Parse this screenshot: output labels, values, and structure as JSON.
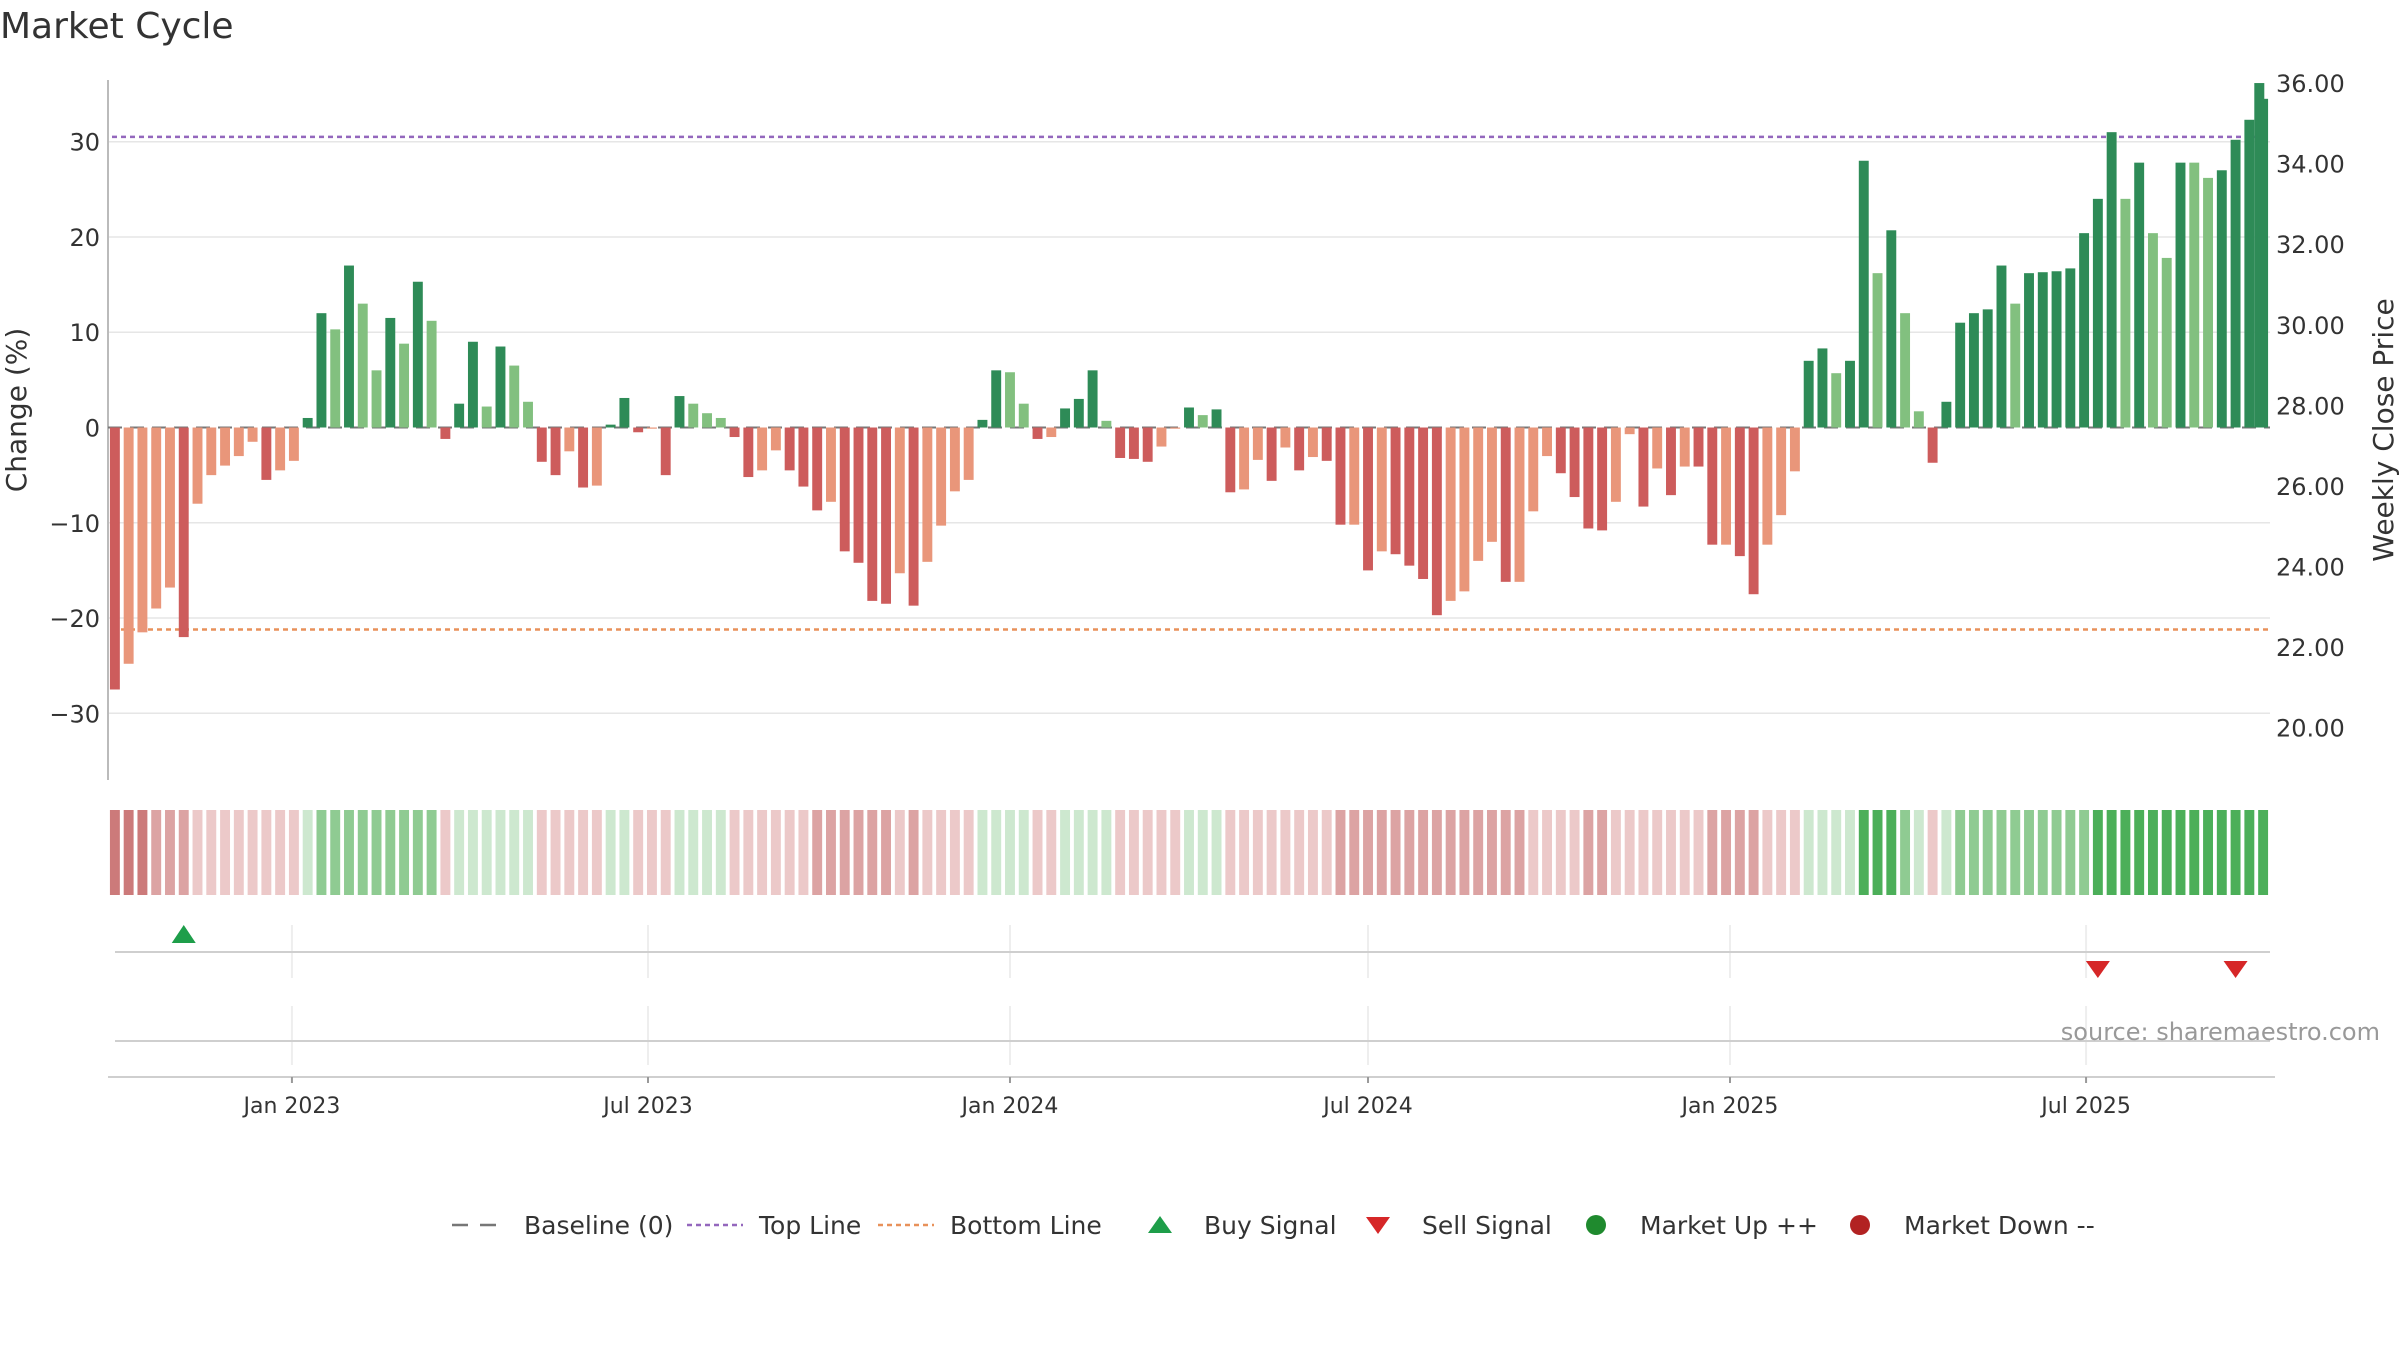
{
  "title": "Market Cycle",
  "source": "source: sharemaestro.com",
  "colors": {
    "strong_up": "#2e8b57",
    "weak_up": "#82c07f",
    "strong_down": "#cd5c5c",
    "weak_down": "#e9967a",
    "baseline": "#777777",
    "top_line": "#9467bd",
    "bottom_line": "#e8915a",
    "buy": "#1e9e4a",
    "sell": "#d62728",
    "market_up": "#1f8a2e",
    "market_down": "#b22222",
    "grid": "#e6e6e6"
  },
  "chart_data": {
    "type": "bar",
    "x_start": "2022-10-03",
    "x_interval_days": 7,
    "y_left_label": "Change (%)",
    "y_right_label": "Weekly Close Price",
    "y_left_ticks": [
      "30",
      "20",
      "10",
      "0",
      "−10",
      "−20",
      "−30"
    ],
    "y_right_ticks": [
      "36.00",
      "34.00",
      "32.00",
      "30.00",
      "28.00",
      "26.00",
      "24.00",
      "22.00",
      "20.00"
    ],
    "x_ticks": [
      {
        "date": "2023-01-01",
        "label": "Jan 2023"
      },
      {
        "date": "2023-07-01",
        "label": "Jul 2023"
      },
      {
        "date": "2024-01-01",
        "label": "Jan 2024"
      },
      {
        "date": "2024-07-01",
        "label": "Jul 2024"
      },
      {
        "date": "2025-01-01",
        "label": "Jan 2025"
      },
      {
        "date": "2025-07-01",
        "label": "Jul 2025"
      }
    ],
    "ylim": [
      -37,
      37
    ],
    "y_right_lim": [
      18.7,
      36.2
    ],
    "top_line": 30.5,
    "bottom_line": -21.2,
    "values": [
      -27.5,
      -24.8,
      -21.5,
      -19,
      -16.8,
      -22,
      -8,
      -5,
      -4,
      -3,
      -1.5,
      -5.5,
      -4.5,
      -3.5,
      1,
      12,
      10.3,
      17,
      13,
      6,
      11.5,
      8.8,
      15.3,
      11.2,
      -1.2,
      2.5,
      9,
      2.2,
      8.5,
      6.5,
      2.7,
      -3.6,
      -5,
      -2.5,
      -6.3,
      -6.1,
      0.3,
      3.1,
      -0.5,
      0,
      -5,
      3.3,
      2.5,
      1.5,
      1,
      -1,
      -5.2,
      -4.5,
      -2.4,
      -4.5,
      -6.2,
      -8.7,
      -7.8,
      -13,
      -14.2,
      -18.2,
      -18.5,
      -15.3,
      -18.7,
      -14.1,
      -10.3,
      -6.7,
      -5.5,
      0.8,
      6,
      5.8,
      2.5,
      -1.2,
      -1,
      2,
      3,
      6,
      0.7,
      -3.2,
      -3.3,
      -3.6,
      -2,
      0,
      2.1,
      1.3,
      1.9,
      -6.8,
      -6.5,
      -3.4,
      -5.6,
      -2.1,
      -4.5,
      -3.1,
      -3.5,
      -10.2,
      -10.2,
      -15,
      -13,
      -13.3,
      -14.5,
      -15.9,
      -19.7,
      -18.2,
      -17.2,
      -14,
      -12,
      -16.2,
      -16.2,
      -8.8,
      -3,
      -4.8,
      -7.3,
      -10.6,
      -10.8,
      -7.8,
      -0.7,
      -8.3,
      -4.3,
      -7.1,
      -4.1,
      -4.1,
      -12.3,
      -12.3,
      -13.5,
      -17.5,
      -12.3,
      -9.2,
      -4.6,
      7,
      8.3,
      5.7,
      7,
      28,
      16.2,
      20.7,
      12,
      1.7,
      -3.7,
      2.7,
      11,
      12,
      12.4,
      17,
      13,
      16.2,
      16.3,
      16.4,
      16.7,
      20.4,
      24,
      31,
      24,
      27.8,
      20.4,
      17.8,
      27.8,
      27.8,
      26.2,
      27,
      30.2,
      32.3,
      34.5
    ],
    "classes": [
      "sd",
      "wd",
      "wd",
      "wd",
      "wd",
      "sd",
      "wd",
      "wd",
      "wd",
      "wd",
      "wd",
      "sd",
      "wd",
      "wd",
      "su",
      "su",
      "wu",
      "su",
      "wu",
      "wu",
      "su",
      "wu",
      "su",
      "wu",
      "sd",
      "su",
      "su",
      "wu",
      "su",
      "wu",
      "wu",
      "sd",
      "sd",
      "wd",
      "sd",
      "wd",
      "su",
      "su",
      "sd",
      "wd",
      "sd",
      "su",
      "wu",
      "wu",
      "wu",
      "sd",
      "sd",
      "wd",
      "wd",
      "sd",
      "sd",
      "sd",
      "wd",
      "sd",
      "sd",
      "sd",
      "sd",
      "wd",
      "sd",
      "wd",
      "wd",
      "wd",
      "wd",
      "su",
      "su",
      "wu",
      "wu",
      "sd",
      "wd",
      "su",
      "su",
      "su",
      "wu",
      "sd",
      "sd",
      "sd",
      "wd",
      "wd",
      "su",
      "wu",
      "su",
      "sd",
      "wd",
      "wd",
      "sd",
      "wd",
      "sd",
      "wd",
      "sd",
      "sd",
      "wd",
      "sd",
      "wd",
      "sd",
      "sd",
      "sd",
      "sd",
      "wd",
      "wd",
      "wd",
      "wd",
      "sd",
      "wd",
      "wd",
      "wd",
      "sd",
      "sd",
      "sd",
      "sd",
      "wd",
      "wd",
      "sd",
      "wd",
      "sd",
      "wd",
      "sd",
      "sd",
      "wd",
      "sd",
      "sd",
      "wd",
      "wd",
      "wd",
      "su",
      "su",
      "wu",
      "su",
      "su",
      "wu",
      "su",
      "wu",
      "wu",
      "sd",
      "su",
      "su",
      "su",
      "su",
      "su",
      "wu",
      "su",
      "su",
      "su",
      "su",
      "su",
      "su",
      "su",
      "wu",
      "su",
      "wu",
      "wu",
      "su",
      "wu",
      "wu",
      "su",
      "su",
      "su",
      "su"
    ],
    "strip": [
      3,
      3,
      3,
      2,
      2,
      2,
      1,
      1,
      1,
      1,
      1,
      1,
      1,
      1,
      -1,
      -2,
      -2,
      -2,
      -2,
      -2,
      -2,
      -2,
      -2,
      -2,
      1,
      -1,
      -1,
      -1,
      -1,
      -1,
      -1,
      1,
      1,
      1,
      1,
      1,
      -1,
      -1,
      1,
      1,
      1,
      -1,
      -1,
      -1,
      -1,
      1,
      1,
      1,
      1,
      1,
      1,
      2,
      2,
      2,
      2,
      2,
      2,
      1,
      2,
      1,
      1,
      1,
      1,
      -1,
      -1,
      -1,
      -1,
      1,
      1,
      -1,
      -1,
      -1,
      -1,
      1,
      1,
      1,
      1,
      1,
      -1,
      -1,
      -1,
      1,
      1,
      1,
      1,
      1,
      1,
      1,
      1,
      2,
      2,
      2,
      2,
      2,
      2,
      2,
      2,
      2,
      2,
      2,
      2,
      2,
      2,
      1,
      1,
      1,
      1,
      2,
      2,
      1,
      1,
      1,
      1,
      1,
      1,
      1,
      2,
      2,
      2,
      2,
      1,
      1,
      1,
      -1,
      -1,
      -1,
      -1,
      -3,
      -3,
      -3,
      -2,
      -1,
      1,
      -1,
      -2,
      -2,
      -2,
      -2,
      -2,
      -2,
      -2,
      -2,
      -2,
      -2,
      -3,
      -3,
      -3,
      -3,
      -3,
      -3,
      -3,
      -3,
      -3,
      -3,
      -3,
      -3,
      -3
    ],
    "buy_signals": [
      5
    ],
    "sell_signals": [
      144,
      154
    ],
    "price_marker": [
      {
        "index": 155,
        "value": 36.0
      }
    ],
    "legend": [
      {
        "key": "baseline",
        "label": "Baseline (0)"
      },
      {
        "key": "top_line",
        "label": "Top Line"
      },
      {
        "key": "bottom_line",
        "label": "Bottom Line"
      },
      {
        "key": "buy",
        "label": "Buy Signal"
      },
      {
        "key": "sell",
        "label": "Sell Signal"
      },
      {
        "key": "market_up",
        "label": "Market Up ++"
      },
      {
        "key": "market_down",
        "label": "Market Down --"
      }
    ]
  }
}
